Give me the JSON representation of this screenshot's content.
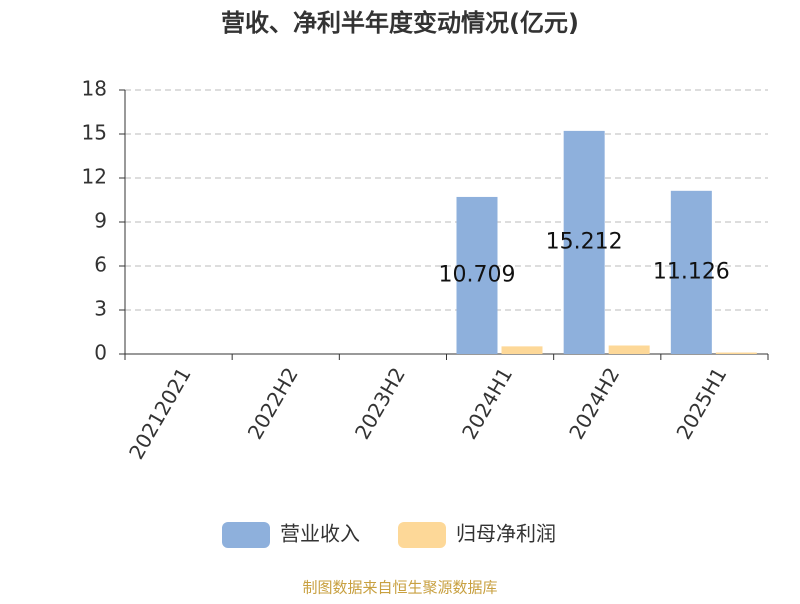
{
  "chart_data": {
    "type": "bar",
    "title": "营收、净利半年度变动情况(亿元)",
    "categories": [
      "20212021",
      "2022H2",
      "2023H2",
      "2024H1",
      "2024H2",
      "2025H1"
    ],
    "series": [
      {
        "name": "营业收入",
        "color": "#8eb0dc",
        "values": [
          null,
          null,
          null,
          10.709,
          15.212,
          11.126
        ],
        "show_labels": true
      },
      {
        "name": "归母净利润",
        "color": "#fdd898",
        "values": [
          null,
          null,
          null,
          0.52,
          0.58,
          0.1
        ],
        "show_labels": false
      }
    ],
    "ylim": [
      0,
      18
    ],
    "yticks": [
      0,
      3,
      6,
      9,
      12,
      15,
      18
    ],
    "grid": true,
    "source": "制图数据来自恒生聚源数据库"
  }
}
